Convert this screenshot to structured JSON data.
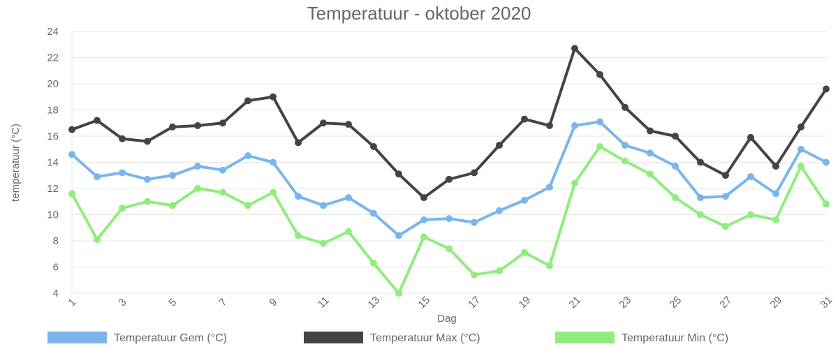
{
  "chart_data": {
    "type": "line",
    "title": "Temperatuur - oktober 2020",
    "xlabel": "Dag",
    "ylabel": "temperatuur (°C)",
    "ylim": [
      4,
      24
    ],
    "yticks": [
      4,
      6,
      8,
      10,
      12,
      14,
      16,
      18,
      20,
      22,
      24
    ],
    "x": [
      1,
      2,
      3,
      4,
      5,
      6,
      7,
      8,
      9,
      10,
      11,
      12,
      13,
      14,
      15,
      16,
      17,
      18,
      19,
      20,
      21,
      22,
      23,
      24,
      25,
      26,
      27,
      28,
      29,
      30,
      31
    ],
    "xtick_labels": [
      "1",
      "3",
      "5",
      "7",
      "9",
      "11",
      "13",
      "15",
      "17",
      "19",
      "21",
      "23",
      "25",
      "27",
      "29",
      "31"
    ],
    "grid": true,
    "legend_position": "bottom",
    "series": [
      {
        "name": "Temperatuur Gem (°C)",
        "color": "#7cb5ec",
        "values": [
          14.6,
          12.9,
          13.2,
          12.7,
          13.0,
          13.7,
          13.4,
          14.5,
          14.0,
          11.4,
          10.7,
          11.3,
          10.1,
          8.4,
          9.6,
          9.7,
          9.4,
          10.3,
          11.1,
          12.1,
          16.8,
          17.1,
          15.3,
          14.7,
          13.7,
          11.3,
          11.4,
          12.9,
          11.6,
          15.0,
          14.0
        ]
      },
      {
        "name": "Temperatuur Max (°C)",
        "color": "#434348",
        "values": [
          16.5,
          17.2,
          15.8,
          15.6,
          16.7,
          16.8,
          17.0,
          18.7,
          19.0,
          15.5,
          17.0,
          16.9,
          15.2,
          13.1,
          11.3,
          12.7,
          13.2,
          15.3,
          17.3,
          16.8,
          22.7,
          20.7,
          18.2,
          16.4,
          16.0,
          14.0,
          13.0,
          15.9,
          13.7,
          16.7,
          19.6
        ]
      },
      {
        "name": "Temperatuur Min (°C)",
        "color": "#90ed7d",
        "values": [
          11.6,
          8.1,
          10.5,
          11.0,
          10.7,
          12.0,
          11.7,
          10.7,
          11.7,
          8.4,
          7.8,
          8.7,
          6.3,
          4.0,
          8.3,
          7.4,
          5.4,
          5.7,
          7.1,
          6.1,
          12.4,
          15.2,
          14.1,
          13.1,
          11.3,
          10.0,
          9.1,
          10.0,
          9.6,
          13.7,
          10.8
        ]
      }
    ]
  }
}
